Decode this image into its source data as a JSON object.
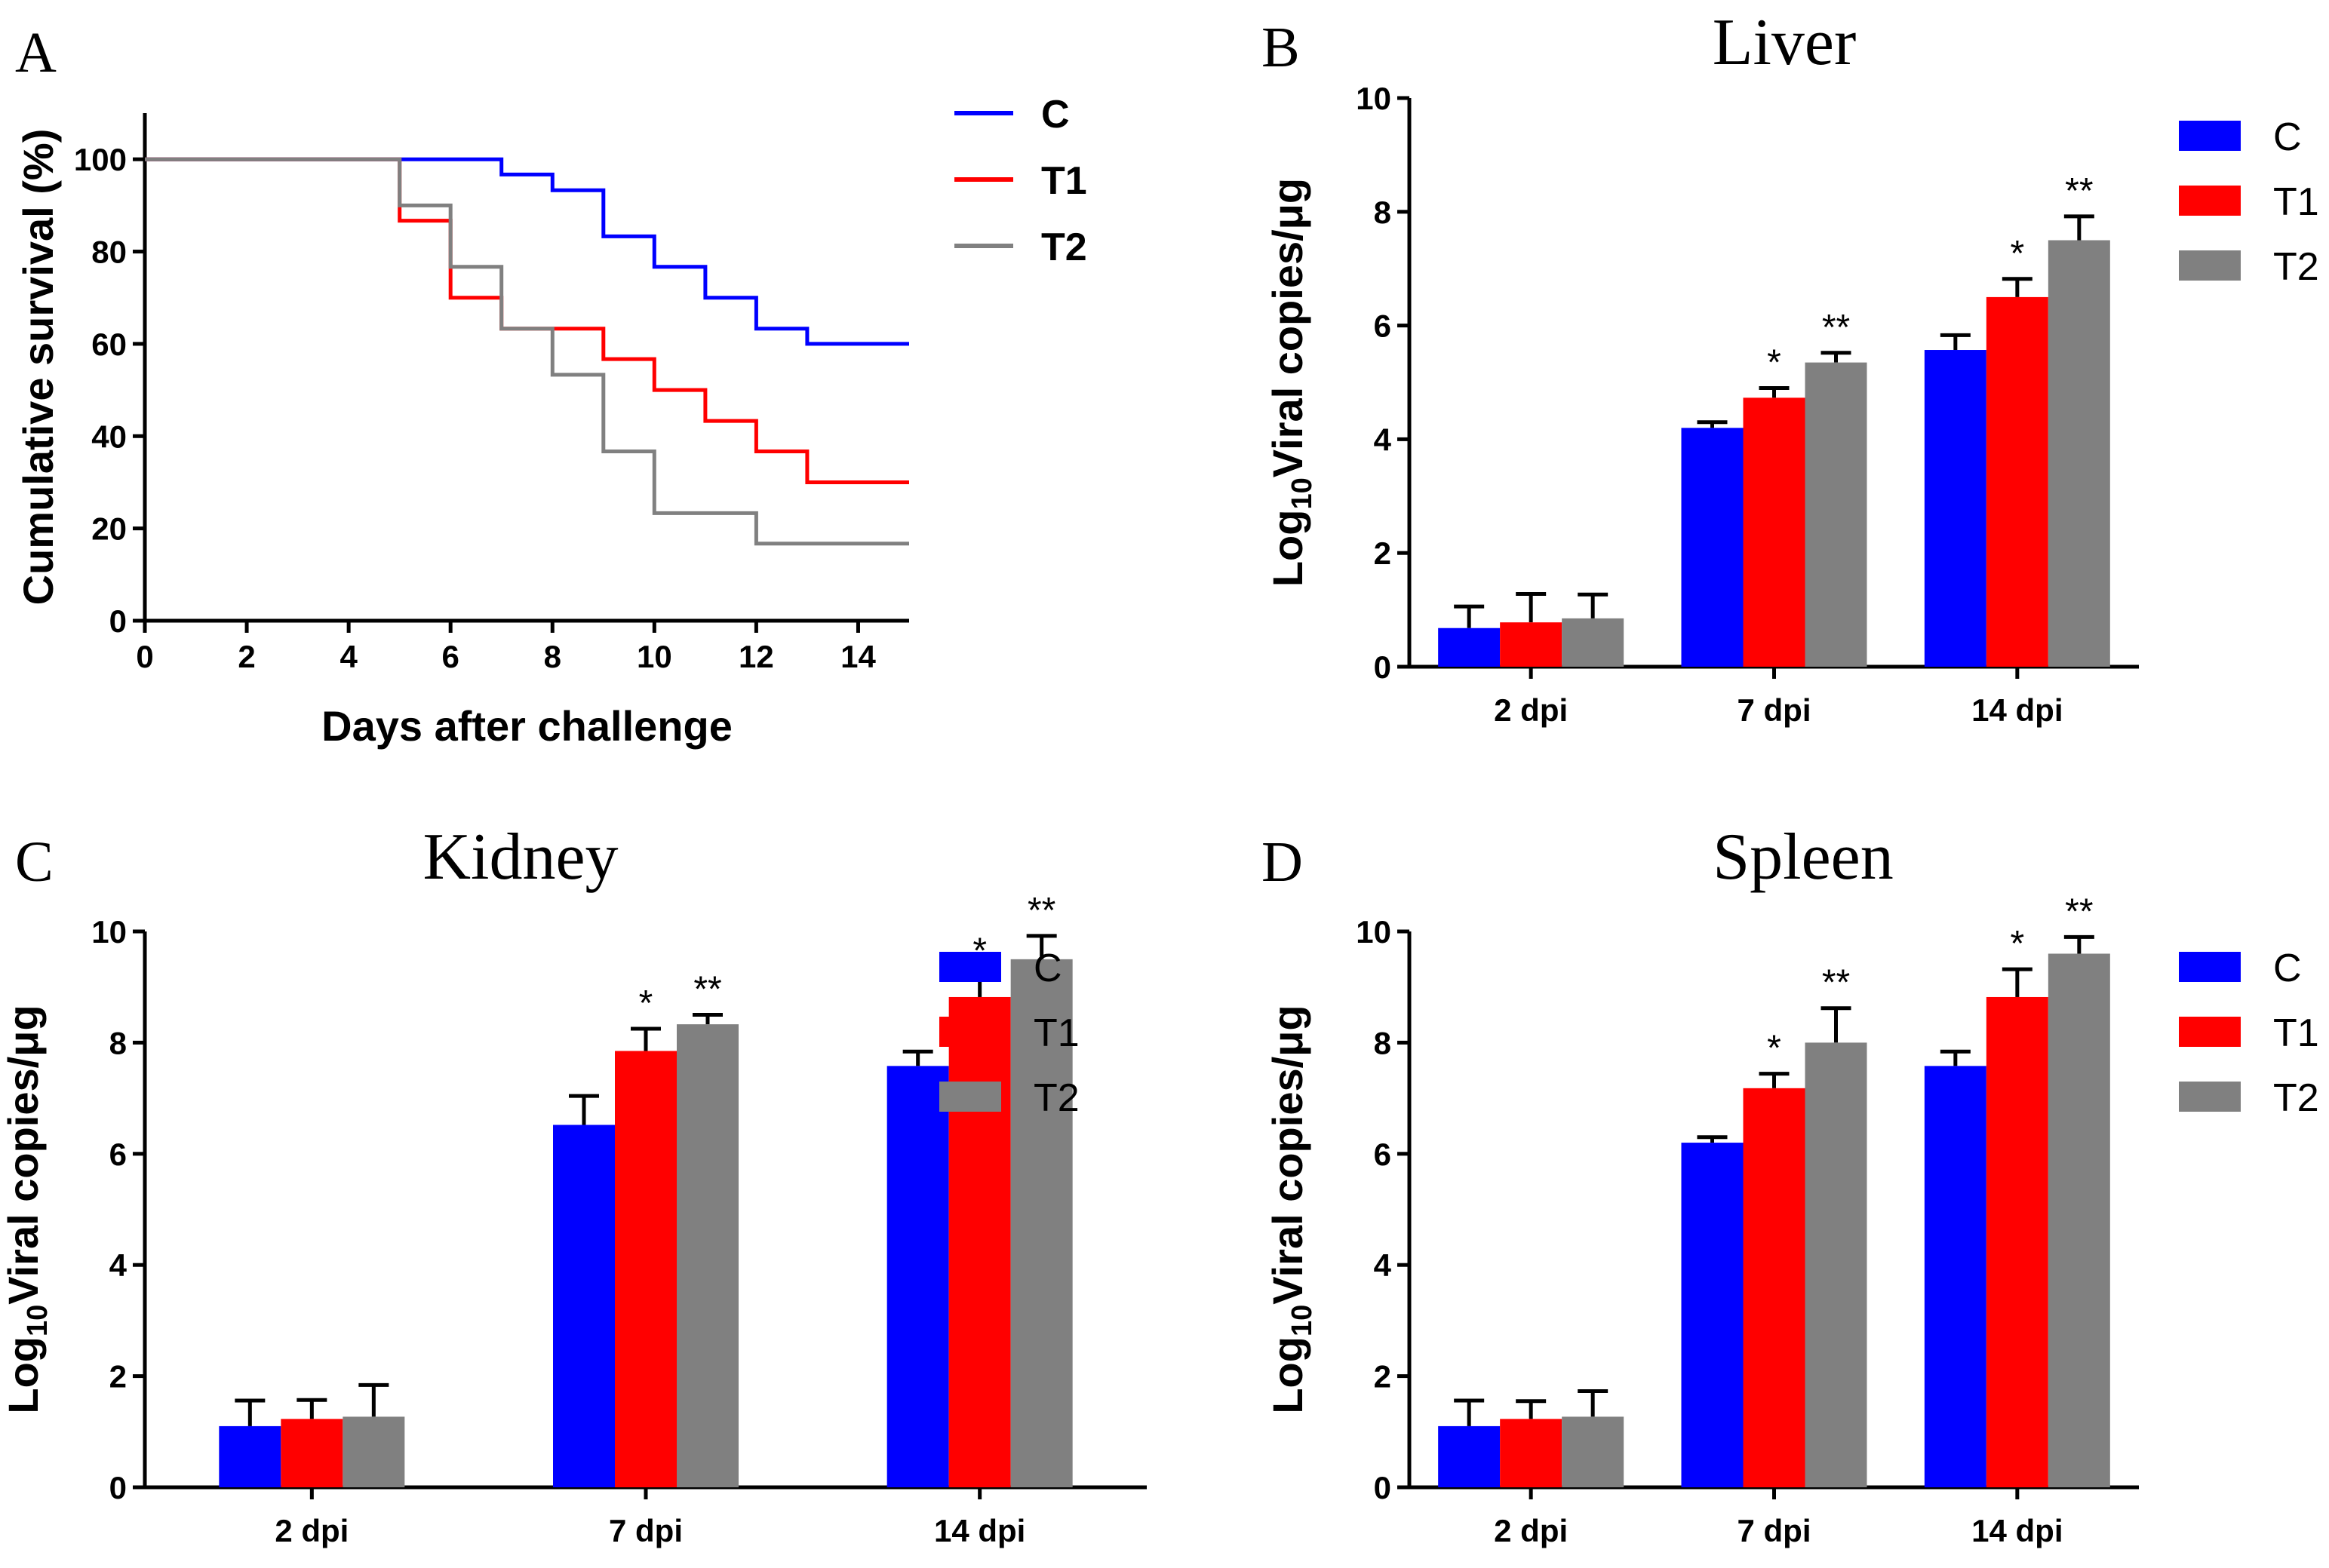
{
  "colors": {
    "C": "#0000ff",
    "T1": "#ff0000",
    "T2": "#808080"
  },
  "chart_data": [
    {
      "id": "A",
      "type": "line",
      "panel_label": "A",
      "title": "",
      "xlabel": "Days after challenge",
      "ylabel": "Cumulative survival (%)",
      "xlim": [
        0,
        15
      ],
      "ylim": [
        0,
        110
      ],
      "xticks": [
        0,
        2,
        4,
        6,
        8,
        10,
        12,
        14
      ],
      "yticks": [
        0,
        20,
        40,
        60,
        80,
        100
      ],
      "legend": [
        "C",
        "T1",
        "T2"
      ],
      "legend_position": "right",
      "series": [
        {
          "name": "C",
          "x": [
            0,
            7,
            7,
            8,
            8,
            9,
            9,
            10,
            10,
            11,
            11,
            12,
            12,
            13,
            13,
            15
          ],
          "y": [
            100,
            100,
            96.7,
            96.7,
            93.3,
            93.3,
            83.3,
            83.3,
            76.7,
            76.7,
            70,
            70,
            63.3,
            63.3,
            60,
            60
          ]
        },
        {
          "name": "T1",
          "x": [
            0,
            5,
            5,
            6,
            6,
            7,
            7,
            9,
            9,
            10,
            10,
            11,
            11,
            12,
            12,
            13,
            13,
            15
          ],
          "y": [
            100,
            100,
            86.7,
            86.7,
            70,
            70,
            63.3,
            63.3,
            56.7,
            56.7,
            50,
            50,
            43.3,
            43.3,
            36.7,
            36.7,
            30,
            30
          ]
        },
        {
          "name": "T2",
          "x": [
            0,
            5,
            5,
            6,
            6,
            7,
            7,
            8,
            8,
            9,
            9,
            10,
            10,
            12,
            12,
            15
          ],
          "y": [
            100,
            100,
            90,
            90,
            76.7,
            76.7,
            63.3,
            63.3,
            53.3,
            53.3,
            36.7,
            36.7,
            23.3,
            23.3,
            16.7,
            16.7
          ]
        }
      ]
    },
    {
      "id": "B",
      "type": "bar",
      "panel_label": "B",
      "title": "Liver",
      "ylabel_prefix": "Log",
      "ylabel_sub": "10",
      "ylabel_rest": "Viral copies/μg",
      "xlabel": "",
      "categories": [
        "2 dpi",
        "7 dpi",
        "14 dpi"
      ],
      "ylim": [
        0,
        10
      ],
      "yticks": [
        0,
        2,
        4,
        6,
        8,
        10
      ],
      "legend": [
        "C",
        "T1",
        "T2"
      ],
      "legend_position": "right",
      "series": [
        {
          "name": "C",
          "values": [
            0.68,
            4.2,
            5.57
          ],
          "errors": [
            0.38,
            0.1,
            0.26
          ],
          "sig": [
            "",
            "",
            ""
          ]
        },
        {
          "name": "T1",
          "values": [
            0.78,
            4.73,
            6.5
          ],
          "errors": [
            0.5,
            0.17,
            0.32
          ],
          "sig": [
            "",
            "*",
            "*"
          ]
        },
        {
          "name": "T2",
          "values": [
            0.85,
            5.35,
            7.5
          ],
          "errors": [
            0.42,
            0.17,
            0.42
          ],
          "sig": [
            "",
            "**",
            "**"
          ]
        }
      ]
    },
    {
      "id": "C",
      "type": "bar",
      "panel_label": "C",
      "title": "Kidney",
      "ylabel_prefix": "Log",
      "ylabel_sub": "10",
      "ylabel_rest": "Viral copies/μg",
      "xlabel": "",
      "categories": [
        "2 dpi",
        "7 dpi",
        "14 dpi"
      ],
      "ylim": [
        0,
        10
      ],
      "yticks": [
        0,
        2,
        4,
        6,
        8,
        10
      ],
      "legend": [
        "C",
        "T1",
        "T2"
      ],
      "legend_position": "right",
      "series": [
        {
          "name": "C",
          "values": [
            1.1,
            6.52,
            7.58
          ],
          "errors": [
            0.46,
            0.52,
            0.26
          ],
          "sig": [
            "",
            "",
            ""
          ]
        },
        {
          "name": "T1",
          "values": [
            1.23,
            7.85,
            8.82
          ],
          "errors": [
            0.34,
            0.4,
            0.37
          ],
          "sig": [
            "",
            "*",
            "*"
          ]
        },
        {
          "name": "T2",
          "values": [
            1.27,
            8.33,
            9.5
          ],
          "errors": [
            0.57,
            0.17,
            0.42
          ],
          "sig": [
            "",
            "**",
            "**"
          ]
        }
      ]
    },
    {
      "id": "D",
      "type": "bar",
      "panel_label": "D",
      "title": "Spleen",
      "ylabel_prefix": "Log",
      "ylabel_sub": "10",
      "ylabel_rest": "Viral copies/μg",
      "xlabel": "",
      "categories": [
        "2 dpi",
        "7 dpi",
        "14 dpi"
      ],
      "ylim": [
        0,
        10
      ],
      "yticks": [
        0,
        2,
        4,
        6,
        8,
        10
      ],
      "legend": [
        "C",
        "T1",
        "T2"
      ],
      "legend_position": "right",
      "series": [
        {
          "name": "C",
          "values": [
            1.1,
            6.2,
            7.58
          ],
          "errors": [
            0.46,
            0.1,
            0.26
          ],
          "sig": [
            "",
            "",
            ""
          ]
        },
        {
          "name": "T1",
          "values": [
            1.23,
            7.18,
            8.82
          ],
          "errors": [
            0.32,
            0.26,
            0.5
          ],
          "sig": [
            "",
            "*",
            "*"
          ]
        },
        {
          "name": "T2",
          "values": [
            1.27,
            8.0,
            9.6
          ],
          "errors": [
            0.46,
            0.62,
            0.3
          ],
          "sig": [
            "",
            "**",
            "**"
          ]
        }
      ]
    }
  ]
}
